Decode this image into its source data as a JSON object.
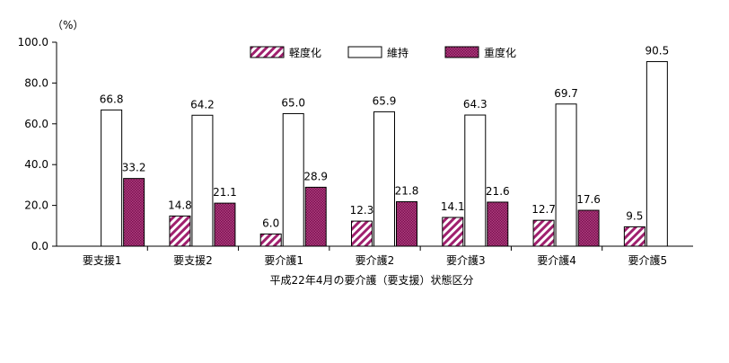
{
  "chart_data": {
    "type": "bar",
    "unit_label": "（%）",
    "xlabel": "平成22年4月の要介護（要支援）状態区分",
    "ylabel": "",
    "ylim": [
      0,
      100
    ],
    "yticks": [
      "0.0",
      "20.0",
      "40.0",
      "60.0",
      "80.0",
      "100.0"
    ],
    "categories": [
      "要支援1",
      "要支援2",
      "要介護1",
      "要介護2",
      "要介護3",
      "要介護4",
      "要介護5"
    ],
    "series": [
      {
        "name": "軽度化",
        "values": [
          null,
          14.8,
          6.0,
          12.3,
          14.1,
          12.7,
          9.5
        ],
        "labels": [
          "",
          "14.8",
          "6.0",
          "12.3",
          "14.1",
          "12.7",
          "9.5"
        ],
        "color": "#a0206e",
        "pattern": "diagonal"
      },
      {
        "name": "維持",
        "values": [
          66.8,
          64.2,
          65.0,
          65.9,
          64.3,
          69.7,
          90.5
        ],
        "labels": [
          "66.8",
          "64.2",
          "65.0",
          "65.9",
          "64.3",
          "69.7",
          "90.5"
        ],
        "color": "#ffffff",
        "pattern": "none"
      },
      {
        "name": "重度化",
        "values": [
          33.2,
          21.1,
          28.9,
          21.8,
          21.6,
          17.6,
          null
        ],
        "labels": [
          "33.2",
          "21.1",
          "28.9",
          "21.8",
          "21.6",
          "17.6",
          ""
        ],
        "color": "#a0206e",
        "pattern": "dense"
      }
    ],
    "legend_position": "top-center",
    "grid": false
  }
}
